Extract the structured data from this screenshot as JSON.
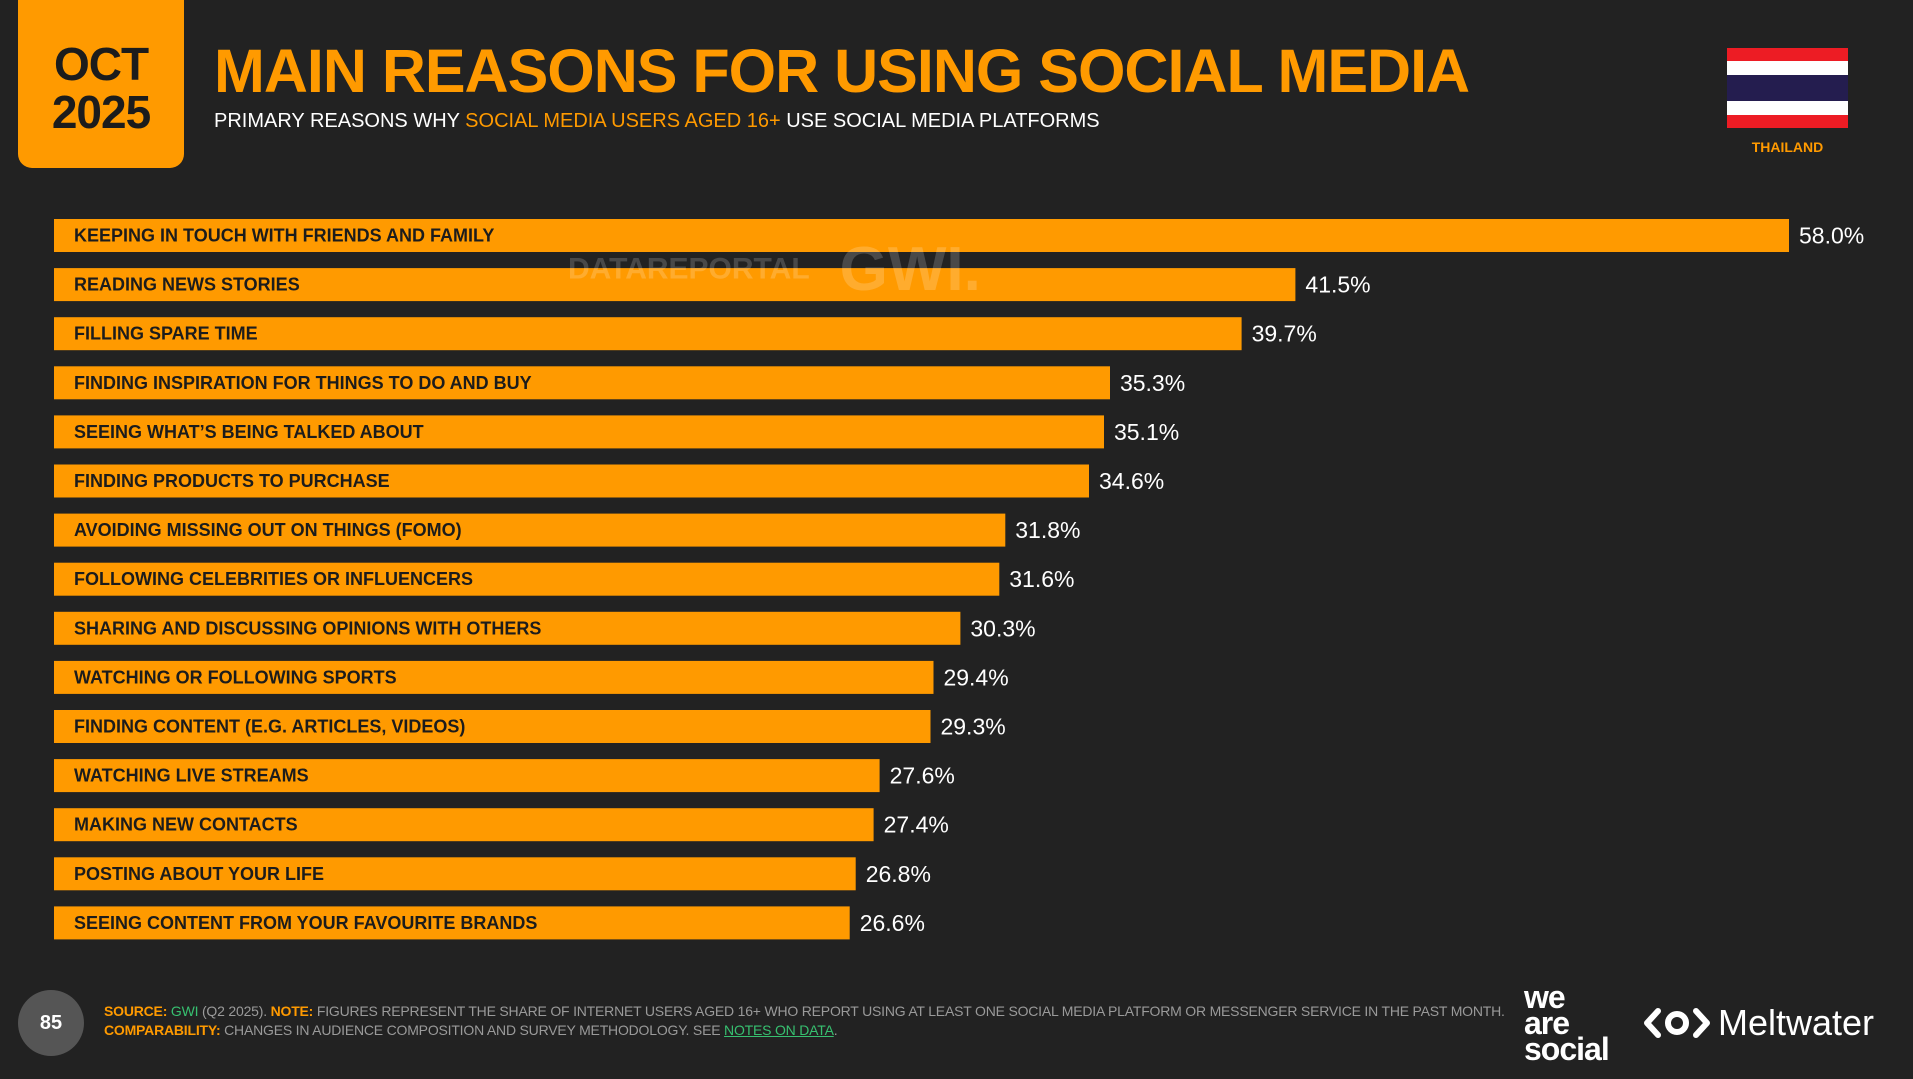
{
  "header": {
    "month": "OCT",
    "year": "2025",
    "title": "MAIN REASONS FOR USING SOCIAL MEDIA",
    "subtitle_pre": "PRIMARY REASONS WHY ",
    "subtitle_highlight": "SOCIAL MEDIA USERS AGED 16+",
    "subtitle_post": " USE SOCIAL MEDIA PLATFORMS",
    "country": "THAILAND"
  },
  "watermark": {
    "datareportal": "DATAREPORTAL",
    "gwi": "GWI."
  },
  "colors": {
    "background": "#222222",
    "accent": "#FF9A00",
    "link": "#37c070"
  },
  "chart_data": {
    "type": "bar",
    "orientation": "horizontal",
    "categories": [
      "KEEPING IN TOUCH WITH FRIENDS AND FAMILY",
      "READING NEWS STORIES",
      "FILLING SPARE TIME",
      "FINDING INSPIRATION FOR THINGS TO DO AND BUY",
      "SEEING WHAT’S BEING TALKED ABOUT",
      "FINDING PRODUCTS TO PURCHASE",
      "AVOIDING MISSING OUT ON THINGS (FOMO)",
      "FOLLOWING CELEBRITIES OR INFLUENCERS",
      "SHARING AND DISCUSSING OPINIONS WITH OTHERS",
      "WATCHING OR FOLLOWING SPORTS",
      "FINDING CONTENT (E.G. ARTICLES, VIDEOS)",
      "WATCHING LIVE STREAMS",
      "MAKING NEW CONTACTS",
      "POSTING ABOUT YOUR LIFE",
      "SEEING CONTENT FROM YOUR FAVOURITE BRANDS"
    ],
    "values": [
      58.0,
      41.5,
      39.7,
      35.3,
      35.1,
      34.6,
      31.8,
      31.6,
      30.3,
      29.4,
      29.3,
      27.6,
      27.4,
      26.8,
      26.6
    ],
    "value_labels": [
      "58.0%",
      "41.5%",
      "39.7%",
      "35.3%",
      "35.1%",
      "34.6%",
      "31.8%",
      "31.6%",
      "30.3%",
      "29.4%",
      "29.3%",
      "27.6%",
      "27.4%",
      "26.8%",
      "26.6%"
    ],
    "xlim": [
      0,
      58.0
    ],
    "grid": false,
    "bar_color": "#FF9A00"
  },
  "footer": {
    "page_number": "85",
    "source_label": "SOURCE:",
    "source_link": "GWI",
    "source_detail": " (Q2 2025). ",
    "note_label": "NOTE:",
    "note_text": " FIGURES REPRESENT THE SHARE OF INTERNET USERS AGED 16+ WHO REPORT USING AT LEAST ONE SOCIAL MEDIA PLATFORM OR MESSENGER SERVICE IN THE PAST MONTH.",
    "comparability_label": "COMPARABILITY:",
    "comparability_text": " CHANGES IN AUDIENCE COMPOSITION AND SURVEY METHODOLOGY. SEE ",
    "notes_link": "NOTES ON DATA",
    "period": ".",
    "brand_1_line1": "we",
    "brand_1_line2": "are",
    "brand_1_line3": "social",
    "brand_2": "Meltwater"
  }
}
